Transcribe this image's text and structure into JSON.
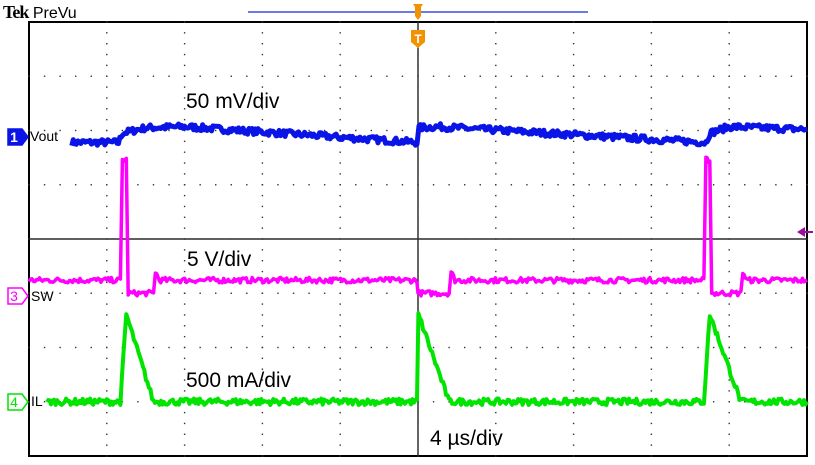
{
  "header": {
    "brand": "Tek",
    "mode": "PreVu"
  },
  "colors": {
    "ch1": "#0a14e6",
    "ch3": "#ff00ff",
    "ch4": "#00e400",
    "trigger": "#f39200",
    "ref_arrow": "#9b0f9b",
    "grid": "#000000"
  },
  "channels": [
    {
      "number": "1",
      "name": "Vout",
      "scale": "50 mV/div",
      "color": "#0a14e6"
    },
    {
      "number": "3",
      "name": "SW",
      "scale": "5 V/div",
      "color": "#ff00ff"
    },
    {
      "number": "4",
      "name": "IL",
      "scale": "500 mA/div",
      "color": "#00e400"
    }
  ],
  "timebase": "4 µs/div",
  "trigger_marker": "T",
  "chart_data": {
    "type": "line",
    "grid": true,
    "divisions": {
      "x": 10,
      "y": 8
    },
    "xlim_us": [
      -20,
      20
    ],
    "ylim_div": [
      -4,
      4
    ],
    "series": [
      {
        "name": "Vout",
        "noise_div": 0.06,
        "points": [
          [
            -17.8,
            1.78
          ],
          [
            -15.4,
            1.78
          ],
          [
            -15.2,
            1.95
          ],
          [
            -14.0,
            2.05
          ],
          [
            -12,
            2.07
          ],
          [
            -0.05,
            1.78
          ],
          [
            0.05,
            2.05
          ],
          [
            1,
            2.07
          ],
          [
            14.8,
            1.78
          ],
          [
            15,
            1.95
          ],
          [
            16,
            2.07
          ],
          [
            20,
            2.02
          ]
        ]
      },
      {
        "name": "SW",
        "noise_div": 0.05,
        "points": [
          [
            -20,
            -0.76
          ],
          [
            -15.3,
            -0.76
          ],
          [
            -15.2,
            1.46
          ],
          [
            -15.0,
            1.46
          ],
          [
            -14.9,
            -1.0
          ],
          [
            -13.6,
            -1.0
          ],
          [
            -13.5,
            -0.6
          ],
          [
            -13.3,
            -0.76
          ],
          [
            -0.05,
            -0.76
          ],
          [
            0,
            -1.0
          ],
          [
            1.6,
            -1.0
          ],
          [
            1.7,
            -0.6
          ],
          [
            1.9,
            -0.76
          ],
          [
            14.7,
            -0.76
          ],
          [
            14.8,
            1.46
          ],
          [
            15.0,
            1.46
          ],
          [
            15.1,
            -1.0
          ],
          [
            16.6,
            -1.0
          ],
          [
            16.7,
            -0.6
          ],
          [
            16.9,
            -0.76
          ],
          [
            20,
            -0.76
          ]
        ]
      },
      {
        "name": "IL",
        "noise_div": 0.06,
        "points": [
          [
            -19.1,
            -3.0
          ],
          [
            -15.3,
            -3.0
          ],
          [
            -15.0,
            -1.39
          ],
          [
            -13.6,
            -3.0
          ],
          [
            -0.05,
            -3.0
          ],
          [
            0.02,
            -1.39
          ],
          [
            1.6,
            -3.0
          ],
          [
            14.7,
            -3.0
          ],
          [
            15.0,
            -1.39
          ],
          [
            16.6,
            -3.0
          ],
          [
            20,
            -3.0
          ]
        ]
      }
    ]
  }
}
